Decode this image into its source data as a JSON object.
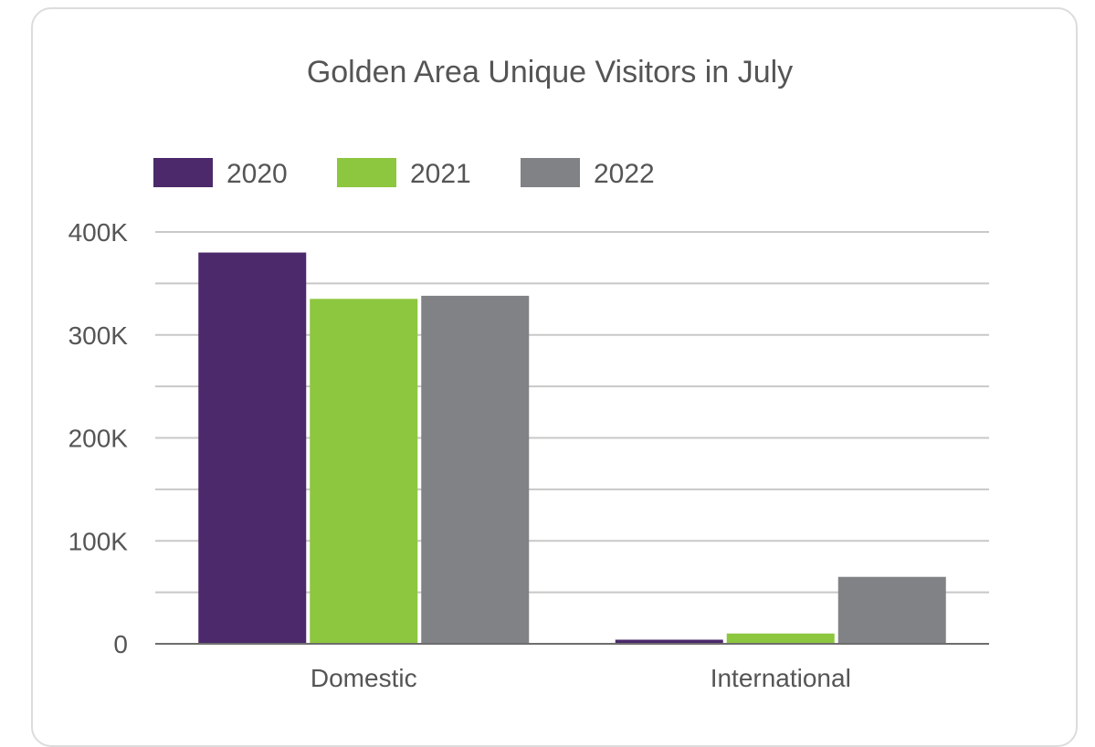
{
  "chart_data": {
    "type": "bar",
    "title": "Golden Area Unique Visitors in July",
    "xlabel": "",
    "ylabel": "",
    "categories": [
      "Domestic",
      "International"
    ],
    "series": [
      {
        "name": "2020",
        "color": "#4b296b",
        "values": [
          380000,
          4000
        ]
      },
      {
        "name": "2021",
        "color": "#8dc63f",
        "values": [
          335000,
          10000
        ]
      },
      {
        "name": "2022",
        "color": "#808285",
        "values": [
          338000,
          65000
        ]
      }
    ],
    "ylim": [
      0,
      400000
    ],
    "ytick_labels": [
      "0",
      "100K",
      "200K",
      "300K",
      "400K"
    ],
    "gridline_step": 50000,
    "grid": true,
    "legend_position": "top-left"
  }
}
